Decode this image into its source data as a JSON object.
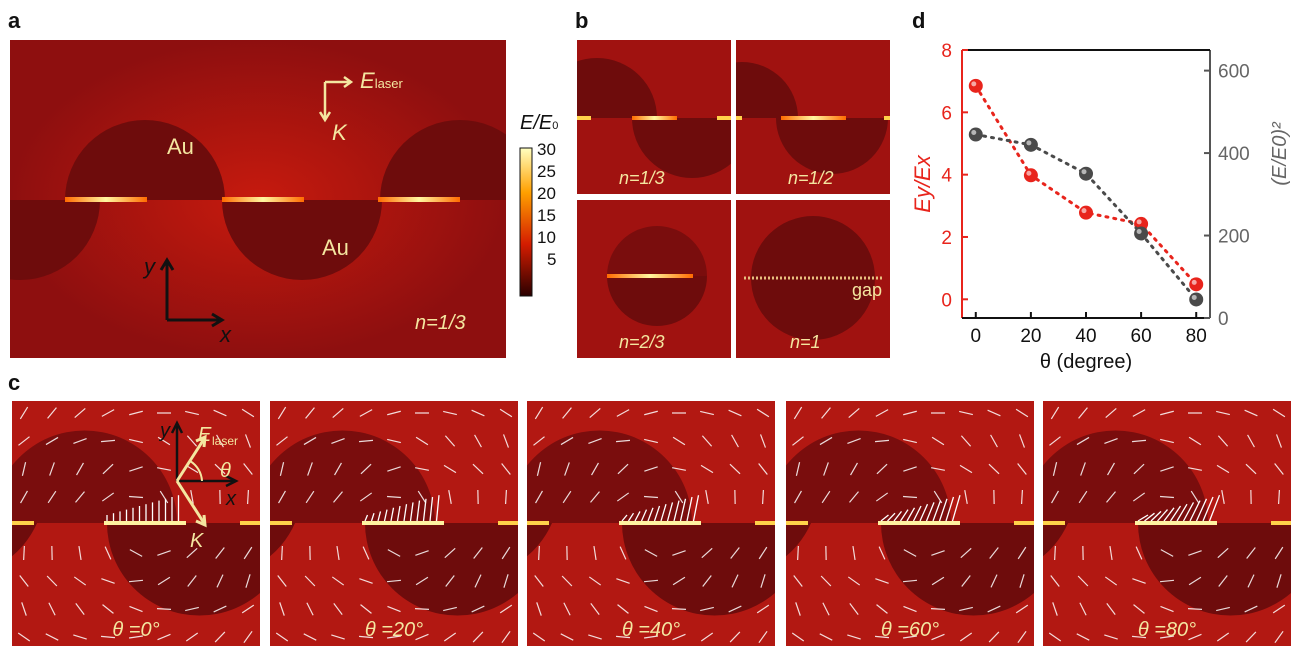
{
  "panel_labels": {
    "a": "a",
    "b": "b",
    "c": "c",
    "d": "d"
  },
  "panel_a": {
    "au_top": "Au",
    "au_bottom": "Au",
    "e_laser": "E",
    "e_laser_sub": "laser",
    "k": "K",
    "axis_x": "x",
    "axis_y": "y",
    "n_value": "n=1/3"
  },
  "colorbar": {
    "title": "E/E",
    "title_sub": "0",
    "ticks": [
      "30",
      "25",
      "20",
      "15",
      "10",
      "5"
    ],
    "colors": {
      "low": "#2a0000",
      "mid": "#d41c00",
      "high": "#ffffc0"
    }
  },
  "panel_b": {
    "sub": [
      {
        "label": "n=1/3"
      },
      {
        "label": "n=1/2"
      },
      {
        "label": "n=2/3"
      },
      {
        "label": "n=1"
      }
    ],
    "gap_label": "gap"
  },
  "panel_c": {
    "frames": [
      {
        "label": "θ =0°"
      },
      {
        "label": "θ =20°"
      },
      {
        "label": "θ =40°"
      },
      {
        "label": "θ =60°"
      },
      {
        "label": "θ =80°"
      }
    ],
    "axis_x": "x",
    "axis_y": "y",
    "e_laser": "E",
    "e_laser_sub": "laser",
    "k": "K",
    "theta": "θ"
  },
  "chart_data": {
    "type": "scatter",
    "xlabel": "θ (degree)",
    "ylabel_left": "Ey/Ex",
    "ylabel_right": "(E/E0)²",
    "xticks": [
      "0",
      "20",
      "40",
      "60",
      "80"
    ],
    "yticks_left": [
      "0",
      "2",
      "4",
      "6",
      "8"
    ],
    "yticks_right": [
      "0",
      "200",
      "400",
      "600"
    ],
    "xlim": [
      -5,
      85
    ],
    "ylim_left": [
      -0.6,
      8
    ],
    "ylim_right": [
      0,
      650
    ],
    "series": [
      {
        "axis": "left",
        "color": "#e8241c",
        "x": [
          0,
          20,
          40,
          60,
          80
        ],
        "y": [
          6.85,
          3.98,
          2.78,
          2.42,
          0.48
        ]
      },
      {
        "axis": "right",
        "color": "#4a4a4a",
        "x": [
          0,
          20,
          40,
          60,
          80
        ],
        "y": [
          445,
          420,
          350,
          205,
          45
        ]
      }
    ]
  }
}
